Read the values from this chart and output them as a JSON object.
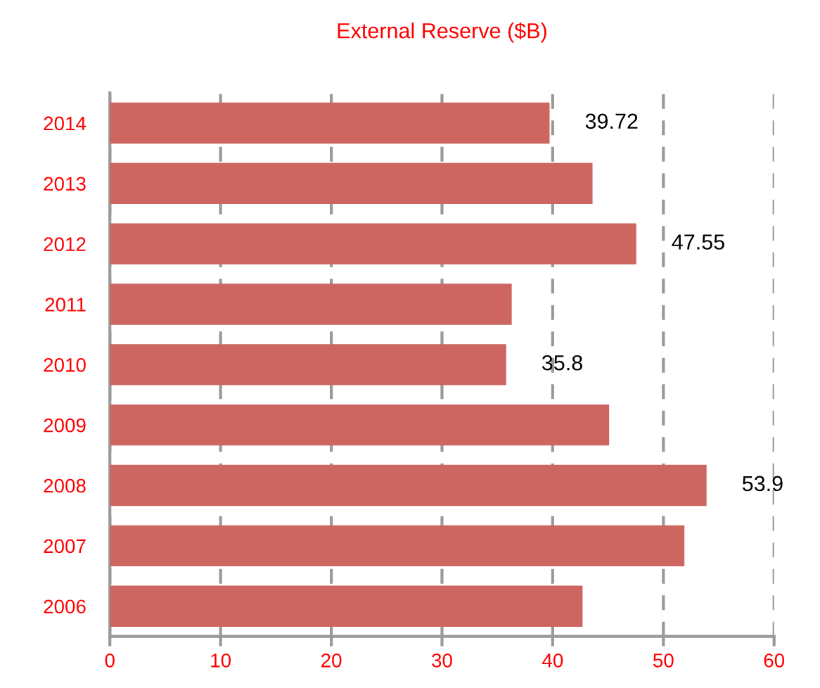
{
  "chart_data": {
    "type": "bar",
    "orientation": "horizontal",
    "title": "External Reserve ($B)",
    "categories": [
      "2014",
      "2013",
      "2012",
      "2011",
      "2010",
      "2009",
      "2008",
      "2007",
      "2006"
    ],
    "values": [
      39.72,
      43.6,
      47.55,
      36.3,
      35.8,
      45.1,
      53.9,
      51.9,
      42.7
    ],
    "value_labels": [
      "39.72",
      null,
      "47.55",
      null,
      "35.8",
      null,
      "53.9",
      null,
      null
    ],
    "color": "#cd6660",
    "xlim": [
      0,
      60
    ],
    "xticks": [
      0,
      10,
      20,
      30,
      40,
      50,
      60
    ],
    "grid": "x",
    "legend": false
  }
}
